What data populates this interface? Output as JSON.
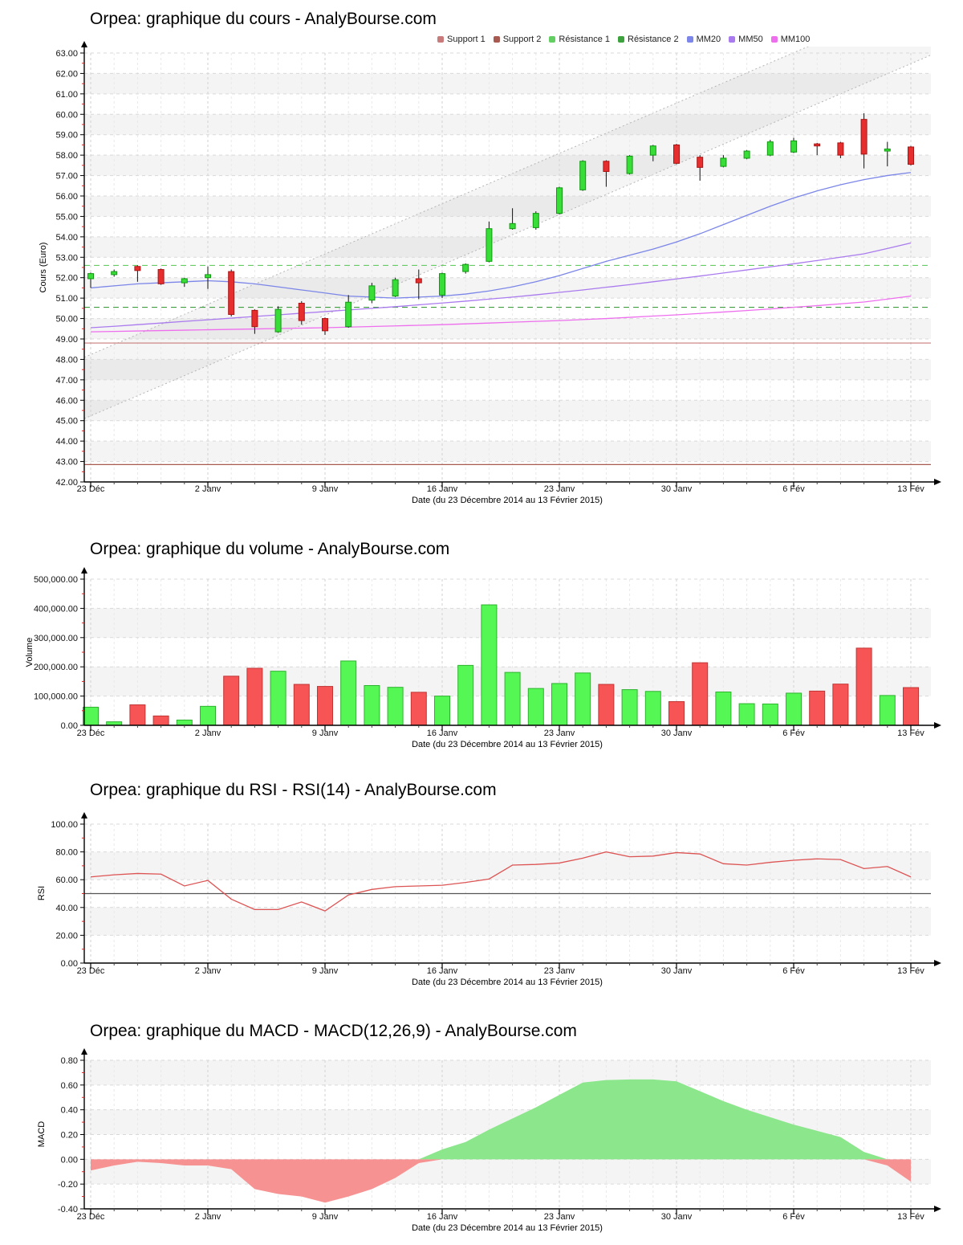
{
  "x_axis": {
    "title": "Date (du 23 Décembre 2014 au 13 Février 2015)",
    "tick_labels": [
      "23 Déc",
      "2 Janv",
      "9 Janv",
      "16 Janv",
      "23 Janv",
      "30 Janv",
      "6 Fév",
      "13 Fév"
    ],
    "tick_indices": [
      0,
      5,
      10,
      15,
      20,
      25,
      30,
      35
    ]
  },
  "chart_data": [
    {
      "type": "candlestick",
      "title": "Orpea: graphique du cours - AnalyBourse.com",
      "ylabel": "Cours (Euro)",
      "y_min": 42,
      "y_max": 63,
      "y_step": 1,
      "y_tick_labels": [
        "42.00",
        "43.00",
        "44.00",
        "45.00",
        "46.00",
        "47.00",
        "48.00",
        "49.00",
        "50.00",
        "51.00",
        "52.00",
        "53.00",
        "54.00",
        "55.00",
        "56.00",
        "57.00",
        "58.00",
        "59.00",
        "60.00",
        "61.00",
        "62.00",
        "63.00"
      ],
      "up_color": "#38dd38",
      "up_border": "#119911",
      "down_color": "#e62e2e",
      "down_border": "#aa1414",
      "legend": [
        {
          "label": "Support 1",
          "color": "#c97b7b"
        },
        {
          "label": "Support 2",
          "color": "#a85a50"
        },
        {
          "label": "Résistance 1",
          "color": "#63cf63"
        },
        {
          "label": "Résistance 2",
          "color": "#3da23d"
        },
        {
          "label": "MM20",
          "color": "#7b86e8"
        },
        {
          "label": "MM50",
          "color": "#aa7bee"
        },
        {
          "label": "MM100",
          "color": "#ee6fee"
        }
      ],
      "ohlc": [
        [
          51.95,
          52.25,
          51.5,
          52.2
        ],
        [
          52.15,
          52.4,
          52.05,
          52.3
        ],
        [
          52.55,
          52.6,
          51.8,
          52.35
        ],
        [
          52.4,
          52.45,
          51.65,
          51.7
        ],
        [
          51.75,
          52.0,
          51.55,
          51.95
        ],
        [
          52.0,
          52.55,
          51.45,
          52.15
        ],
        [
          52.3,
          52.4,
          50.1,
          50.2
        ],
        [
          50.4,
          50.45,
          49.25,
          49.6
        ],
        [
          49.35,
          50.6,
          49.3,
          50.45
        ],
        [
          50.75,
          50.85,
          49.7,
          49.9
        ],
        [
          50.0,
          50.05,
          49.2,
          49.4
        ],
        [
          49.6,
          51.15,
          49.55,
          50.8
        ],
        [
          50.9,
          51.75,
          50.75,
          51.6
        ],
        [
          51.1,
          52.0,
          51.05,
          51.9
        ],
        [
          51.95,
          52.4,
          50.95,
          51.75
        ],
        [
          51.15,
          52.25,
          51.0,
          52.2
        ],
        [
          52.3,
          52.7,
          52.2,
          52.65
        ],
        [
          52.8,
          54.75,
          52.75,
          54.4
        ],
        [
          54.4,
          55.4,
          54.35,
          54.65
        ],
        [
          54.45,
          55.25,
          54.35,
          55.15
        ],
        [
          55.15,
          56.45,
          55.1,
          56.4
        ],
        [
          56.3,
          57.75,
          56.25,
          57.7
        ],
        [
          57.7,
          57.75,
          56.45,
          57.2
        ],
        [
          57.1,
          58.0,
          57.05,
          57.95
        ],
        [
          58.0,
          58.5,
          57.7,
          58.45
        ],
        [
          58.5,
          58.55,
          57.55,
          57.6
        ],
        [
          57.9,
          58.0,
          56.75,
          57.4
        ],
        [
          57.45,
          58.0,
          57.4,
          57.85
        ],
        [
          57.85,
          58.25,
          57.8,
          58.2
        ],
        [
          58.0,
          58.75,
          57.95,
          58.65
        ],
        [
          58.15,
          58.85,
          58.1,
          58.7
        ],
        [
          58.55,
          58.6,
          58.0,
          58.45
        ],
        [
          58.6,
          58.65,
          57.85,
          58.0
        ],
        [
          59.75,
          60.05,
          57.35,
          58.05
        ],
        [
          58.2,
          58.65,
          57.45,
          58.3
        ],
        [
          58.4,
          58.45,
          57.5,
          57.55
        ]
      ],
      "moving_averages": [
        {
          "name": "MM20",
          "color": "#7b86e8",
          "values": [
            51.5,
            51.6,
            51.7,
            51.75,
            51.8,
            51.85,
            51.8,
            51.7,
            51.55,
            51.4,
            51.25,
            51.1,
            51.05,
            51.0,
            51.05,
            51.1,
            51.2,
            51.35,
            51.55,
            51.8,
            52.1,
            52.45,
            52.8,
            53.1,
            53.4,
            53.75,
            54.15,
            54.6,
            55.05,
            55.5,
            55.9,
            56.25,
            56.55,
            56.8,
            57.0,
            57.15
          ]
        },
        {
          "name": "MM50",
          "color": "#aa7bee",
          "values": [
            49.55,
            49.62,
            49.7,
            49.78,
            49.86,
            49.94,
            50.02,
            50.1,
            50.18,
            50.26,
            50.34,
            50.42,
            50.5,
            50.58,
            50.67,
            50.76,
            50.85,
            50.95,
            51.05,
            51.16,
            51.28,
            51.4,
            51.53,
            51.66,
            51.8,
            51.94,
            52.08,
            52.23,
            52.38,
            52.53,
            52.68,
            52.84,
            53.0,
            53.17,
            53.43,
            53.7
          ]
        },
        {
          "name": "MM100",
          "color": "#ee6fee",
          "values": [
            49.35,
            49.37,
            49.39,
            49.41,
            49.43,
            49.45,
            49.47,
            49.49,
            49.51,
            49.53,
            49.55,
            49.58,
            49.61,
            49.64,
            49.67,
            49.7,
            49.74,
            49.78,
            49.82,
            49.86,
            49.9,
            49.95,
            50.0,
            50.06,
            50.12,
            50.18,
            50.25,
            50.32,
            50.39,
            50.47,
            50.55,
            50.63,
            50.72,
            50.81,
            50.95,
            51.1
          ]
        }
      ],
      "levels": [
        {
          "name": "Résistance 1",
          "value": 52.6,
          "color": "#63cf63",
          "style": "dashed"
        },
        {
          "name": "Résistance 2",
          "value": 50.55,
          "color": "#3da23d",
          "style": "dashed"
        },
        {
          "name": "Support 1",
          "value": 48.8,
          "color": "#c97b7b",
          "style": "solid"
        },
        {
          "name": "Support 2",
          "value": 42.85,
          "color": "#a85a50",
          "style": "solid"
        }
      ],
      "channel": {
        "upper": [
          48.1,
          65.9
        ],
        "lower": [
          45.1,
          62.9
        ],
        "line_color": "#b5b5b5",
        "fill": "rgba(120,120,120,0.07)"
      }
    },
    {
      "type": "bar",
      "title": "Orpea: graphique du volume - AnalyBourse.com",
      "ylabel": "Volume",
      "y_min": 0,
      "y_max": 500000,
      "y_step": 100000,
      "y_tick_labels": [
        "0.00",
        "100,000.00",
        "200,000.00",
        "300,000.00",
        "400,000.00",
        "500,000.00"
      ],
      "up_color": "#55f755",
      "up_border": "#2db32d",
      "down_color": "#f75555",
      "down_border": "#c13434",
      "values": [
        62000,
        12000,
        70000,
        32000,
        18000,
        65000,
        168000,
        195000,
        185000,
        140000,
        133000,
        220000,
        136000,
        130000,
        113000,
        100000,
        205000,
        412000,
        181000,
        126000,
        143000,
        179000,
        140000,
        122000,
        116000,
        81000,
        214000,
        114000,
        74000,
        73000,
        110000,
        117000,
        141000,
        264000,
        102000,
        129000
      ],
      "directions": [
        "up",
        "up",
        "down",
        "down",
        "up",
        "up",
        "down",
        "down",
        "up",
        "down",
        "down",
        "up",
        "up",
        "up",
        "down",
        "up",
        "up",
        "up",
        "up",
        "up",
        "up",
        "up",
        "down",
        "up",
        "up",
        "down",
        "down",
        "up",
        "up",
        "up",
        "up",
        "down",
        "down",
        "down",
        "up",
        "down"
      ]
    },
    {
      "type": "line",
      "title": "Orpea: graphique du RSI - RSI(14) - AnalyBourse.com",
      "ylabel": "RSI",
      "y_min": 0,
      "y_max": 100,
      "y_step": 20,
      "y_tick_labels": [
        "0.00",
        "20.00",
        "40.00",
        "60.00",
        "80.00",
        "100.00"
      ],
      "line_color": "#dd5454",
      "midline": 50,
      "midline_color": "#555555",
      "values": [
        62,
        63.5,
        64.5,
        64,
        55.5,
        59.5,
        46,
        38.5,
        38.5,
        44,
        37.5,
        49,
        53,
        55,
        55.5,
        56,
        58,
        60.5,
        70.5,
        71,
        72,
        75.5,
        80,
        76.5,
        77,
        79.5,
        78.5,
        71.5,
        70.5,
        72.5,
        74,
        75,
        74.5,
        68,
        69.5,
        62
      ]
    },
    {
      "type": "area",
      "title": "Orpea: graphique du MACD - MACD(12,26,9) - AnalyBourse.com",
      "ylabel": "MACD",
      "y_min": -0.4,
      "y_max": 0.8,
      "y_step": 0.2,
      "y_tick_labels": [
        "-0.40",
        "-0.20",
        "0.00",
        "0.20",
        "0.40",
        "0.60",
        "0.80"
      ],
      "pos_color": "#8ce68c",
      "neg_color": "#f79292",
      "values": [
        -0.09,
        -0.05,
        -0.02,
        -0.03,
        -0.05,
        -0.05,
        -0.08,
        -0.24,
        -0.28,
        -0.3,
        -0.35,
        -0.3,
        -0.24,
        -0.15,
        -0.03,
        0.08,
        0.14,
        0.24,
        0.33,
        0.42,
        0.52,
        0.62,
        0.64,
        0.645,
        0.645,
        0.63,
        0.55,
        0.47,
        0.4,
        0.34,
        0.28,
        0.23,
        0.18,
        0.06,
        -0.05,
        -0.18
      ]
    }
  ]
}
